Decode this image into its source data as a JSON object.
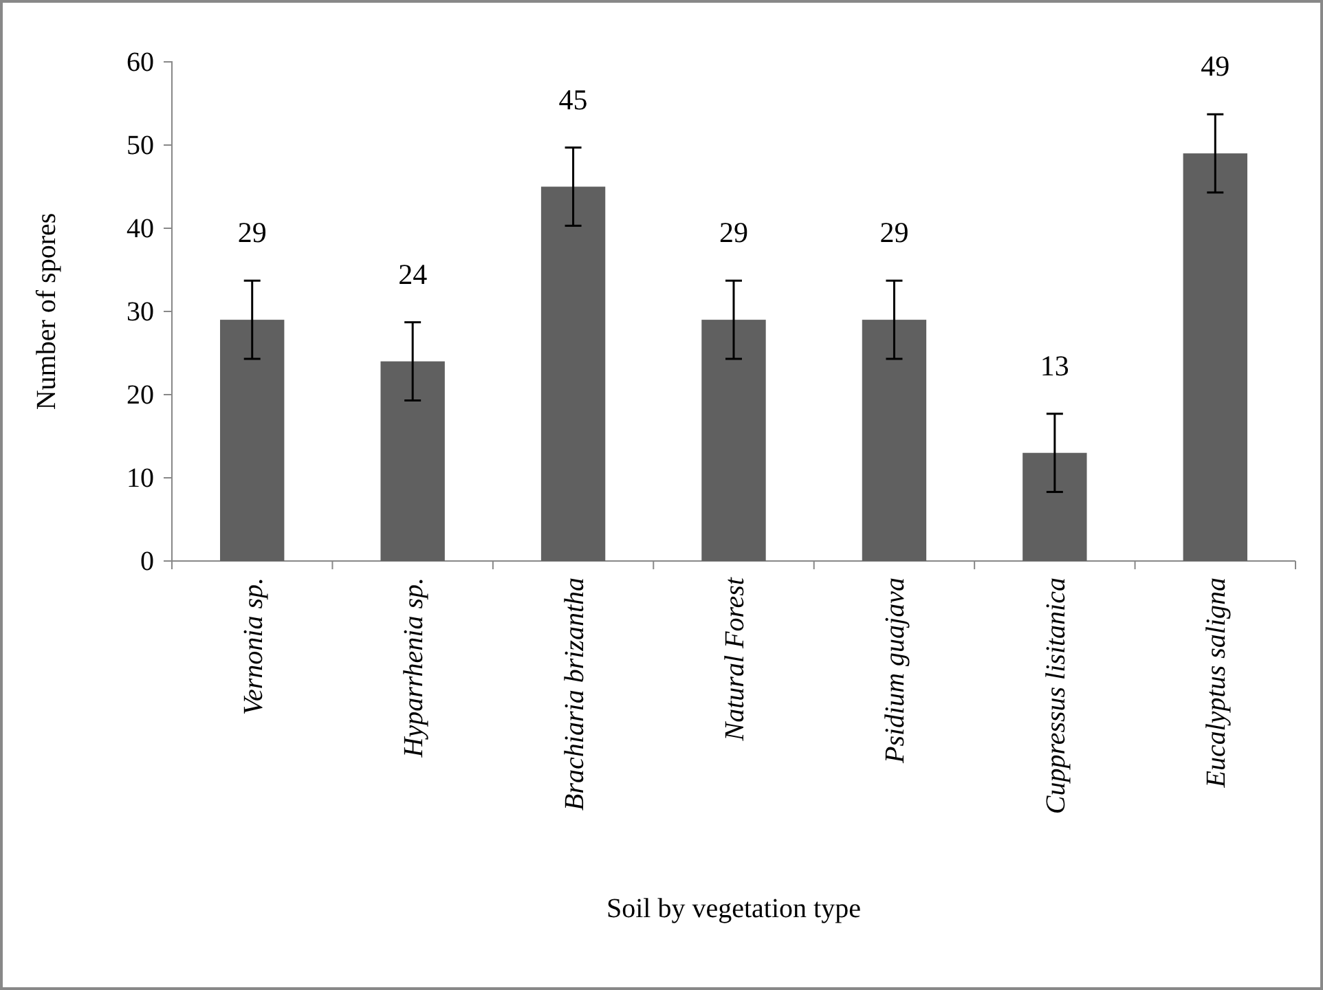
{
  "chart_data": {
    "type": "bar",
    "xlabel": "Soil by vegetation type",
    "ylabel": "Number of spores",
    "categories": [
      "Vernonia sp.",
      "Hyparrhenia sp.",
      "Brachiaria brizantha",
      "Natural Forest",
      "Psidium guajava",
      "Cuppressus lisitanica",
      "Eucalyptus saligna"
    ],
    "values": [
      29,
      24,
      45,
      29,
      29,
      13,
      49
    ],
    "errors": [
      4.7,
      4.7,
      4.7,
      4.7,
      4.7,
      4.7,
      4.7
    ],
    "color": "#606060",
    "ylim": [
      0,
      60
    ],
    "yticks": [
      0,
      10,
      20,
      30,
      40,
      50,
      60
    ],
    "data_labels": true
  }
}
